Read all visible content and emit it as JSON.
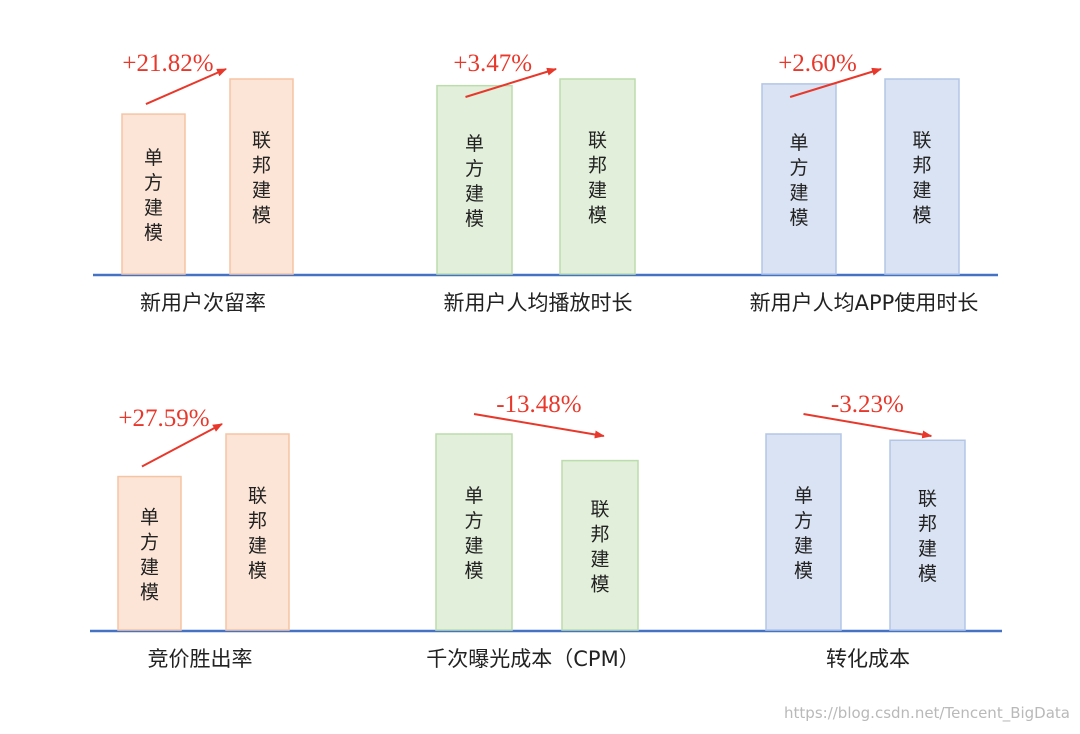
{
  "chart_data": [
    {
      "type": "bar",
      "xlabel": "新用户次留率",
      "categories": [
        "单方建模",
        "联邦建模"
      ],
      "values": [
        0.821,
        1.0
      ],
      "change_label": "+21.82%",
      "trend": "up",
      "colors": {
        "fill": "#fce5d6",
        "stroke": "#f5c4a4"
      }
    },
    {
      "type": "bar",
      "xlabel": "新用户人均播放时长",
      "categories": [
        "单方建模",
        "联邦建模"
      ],
      "values": [
        0.966,
        1.0
      ],
      "change_label": "+3.47%",
      "trend": "up",
      "colors": {
        "fill": "#e2efda",
        "stroke": "#bcdcac"
      }
    },
    {
      "type": "bar",
      "xlabel": "新用户人均APP使用时长",
      "categories": [
        "单方建模",
        "联邦建模"
      ],
      "values": [
        0.975,
        1.0
      ],
      "change_label": "+2.60%",
      "trend": "up",
      "colors": {
        "fill": "#dae3f3",
        "stroke": "#b3c5e6"
      }
    },
    {
      "type": "bar",
      "xlabel": "竞价胜出率",
      "categories": [
        "单方建模",
        "联邦建模"
      ],
      "values": [
        0.784,
        1.0
      ],
      "change_label": "+27.59%",
      "trend": "up",
      "colors": {
        "fill": "#fce5d6",
        "stroke": "#f5c4a4"
      }
    },
    {
      "type": "bar",
      "xlabel": "千次曝光成本（CPM）",
      "categories": [
        "单方建模",
        "联邦建模"
      ],
      "values": [
        1.0,
        0.865
      ],
      "change_label": "-13.48%",
      "trend": "down",
      "colors": {
        "fill": "#e2efda",
        "stroke": "#bcdcac"
      }
    },
    {
      "type": "bar",
      "xlabel": "转化成本",
      "categories": [
        "单方建模",
        "联邦建模"
      ],
      "values": [
        1.0,
        0.968
      ],
      "change_label": "-3.23%",
      "trend": "down",
      "colors": {
        "fill": "#dae3f3",
        "stroke": "#b3c5e6"
      }
    }
  ],
  "colors": {
    "baseline": "#4472c4",
    "arrow": "#e8382b"
  },
  "watermark": "https://blog.csdn.net/Tencent_BigData"
}
